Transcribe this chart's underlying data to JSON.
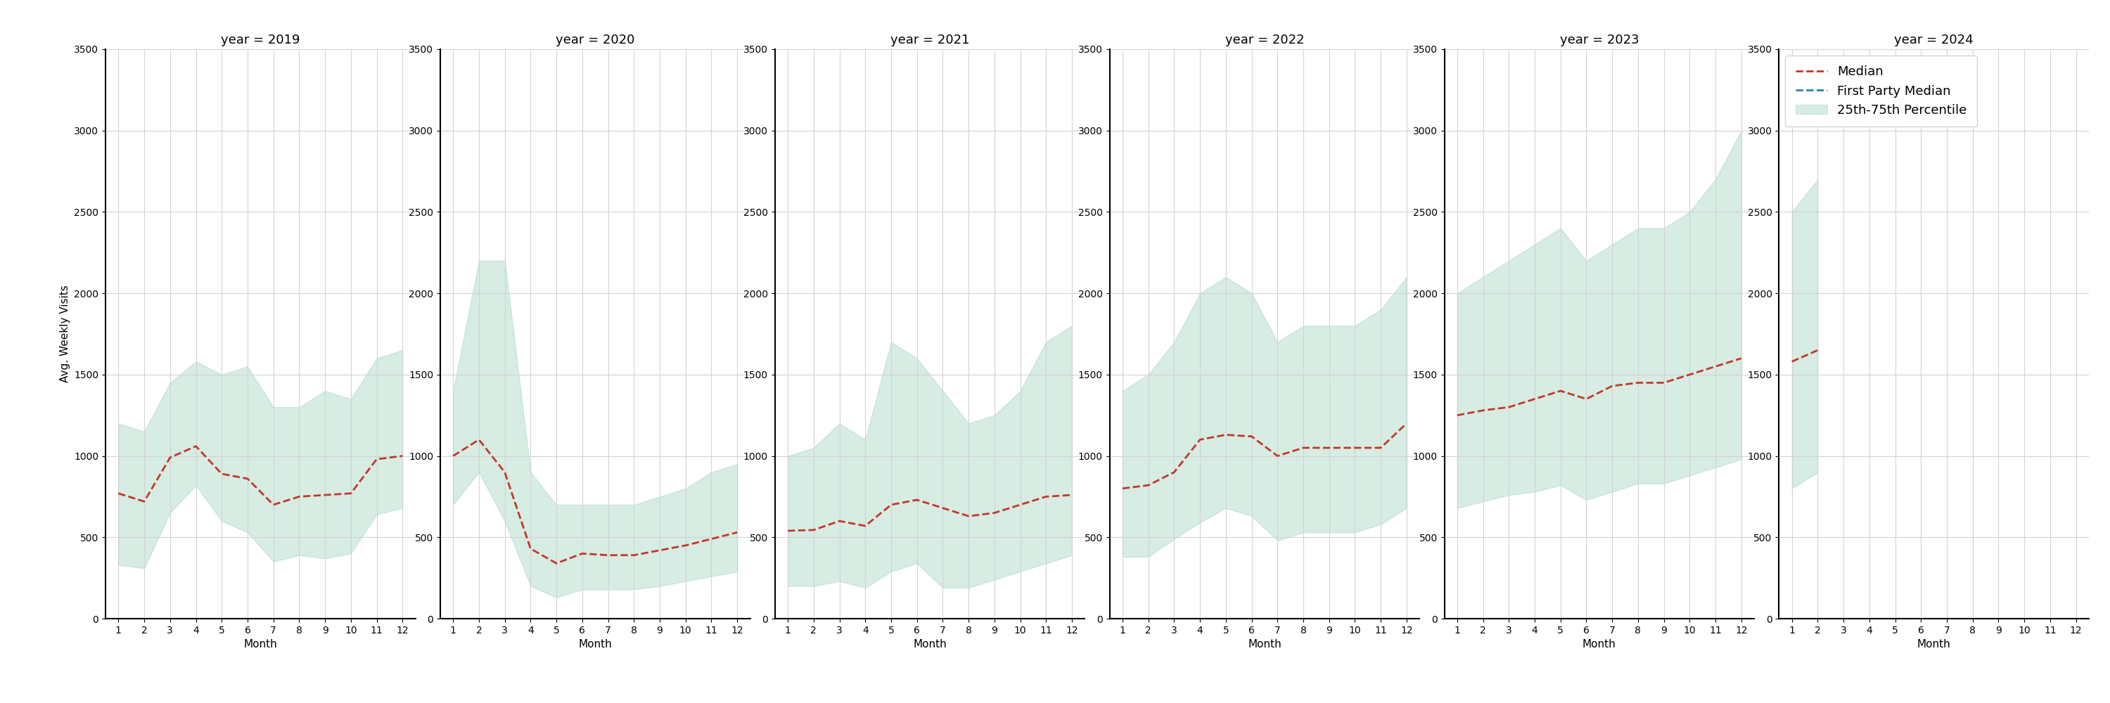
{
  "years": [
    2019,
    2020,
    2021,
    2022,
    2023,
    2024
  ],
  "months": [
    1,
    2,
    3,
    4,
    5,
    6,
    7,
    8,
    9,
    10,
    11,
    12
  ],
  "median": {
    "2019": [
      770,
      720,
      990,
      1060,
      890,
      860,
      700,
      750,
      760,
      770,
      980,
      1000
    ],
    "2020": [
      1000,
      1100,
      900,
      430,
      340,
      400,
      390,
      390,
      420,
      450,
      490,
      530
    ],
    "2021": [
      540,
      545,
      600,
      570,
      700,
      730,
      680,
      630,
      650,
      700,
      750,
      760
    ],
    "2022": [
      800,
      820,
      900,
      1100,
      1130,
      1120,
      1000,
      1050,
      1050,
      1050,
      1050,
      1200
    ],
    "2023": [
      1250,
      1280,
      1300,
      1350,
      1400,
      1350,
      1430,
      1450,
      1450,
      1500,
      1550,
      1600
    ],
    "2024": [
      1580,
      1650,
      null,
      null,
      null,
      null,
      null,
      null,
      null,
      null,
      null,
      null
    ]
  },
  "p25": {
    "2019": [
      330,
      310,
      650,
      820,
      600,
      530,
      350,
      390,
      370,
      400,
      640,
      680
    ],
    "2020": [
      700,
      900,
      600,
      200,
      130,
      180,
      180,
      180,
      200,
      230,
      260,
      290
    ],
    "2021": [
      200,
      200,
      230,
      190,
      290,
      340,
      190,
      190,
      240,
      290,
      340,
      390
    ],
    "2022": [
      380,
      380,
      490,
      590,
      680,
      630,
      480,
      530,
      530,
      530,
      580,
      680
    ],
    "2023": [
      680,
      720,
      760,
      780,
      820,
      730,
      780,
      830,
      830,
      880,
      930,
      980
    ],
    "2024": [
      800,
      900,
      null,
      null,
      null,
      null,
      null,
      null,
      null,
      null,
      null,
      null
    ]
  },
  "p75": {
    "2019": [
      1200,
      1150,
      1450,
      1580,
      1500,
      1550,
      1300,
      1300,
      1400,
      1350,
      1600,
      1650
    ],
    "2020": [
      1400,
      2200,
      2200,
      900,
      700,
      700,
      700,
      700,
      750,
      800,
      900,
      950
    ],
    "2021": [
      1000,
      1050,
      1200,
      1100,
      1700,
      1600,
      1400,
      1200,
      1250,
      1400,
      1700,
      1800
    ],
    "2022": [
      1400,
      1500,
      1700,
      2000,
      2100,
      2000,
      1700,
      1800,
      1800,
      1800,
      1900,
      2100
    ],
    "2023": [
      2000,
      2100,
      2200,
      2300,
      2400,
      2200,
      2300,
      2400,
      2400,
      2500,
      2700,
      3000
    ],
    "2024": [
      2500,
      2700,
      null,
      null,
      null,
      null,
      null,
      null,
      null,
      null,
      null,
      null
    ]
  },
  "ylim": [
    0,
    3500
  ],
  "yticks": [
    0,
    500,
    1000,
    1500,
    2000,
    2500,
    3000,
    3500
  ],
  "ylabel": "Avg. Weekly Visits",
  "xlabel": "Month",
  "median_color": "#c0392b",
  "fp_median_color": "#2980b9",
  "band_color": "#a8d5c2",
  "band_alpha": 0.45,
  "title_fontsize": 13,
  "axis_fontsize": 11,
  "tick_fontsize": 10,
  "legend_fontsize": 13
}
